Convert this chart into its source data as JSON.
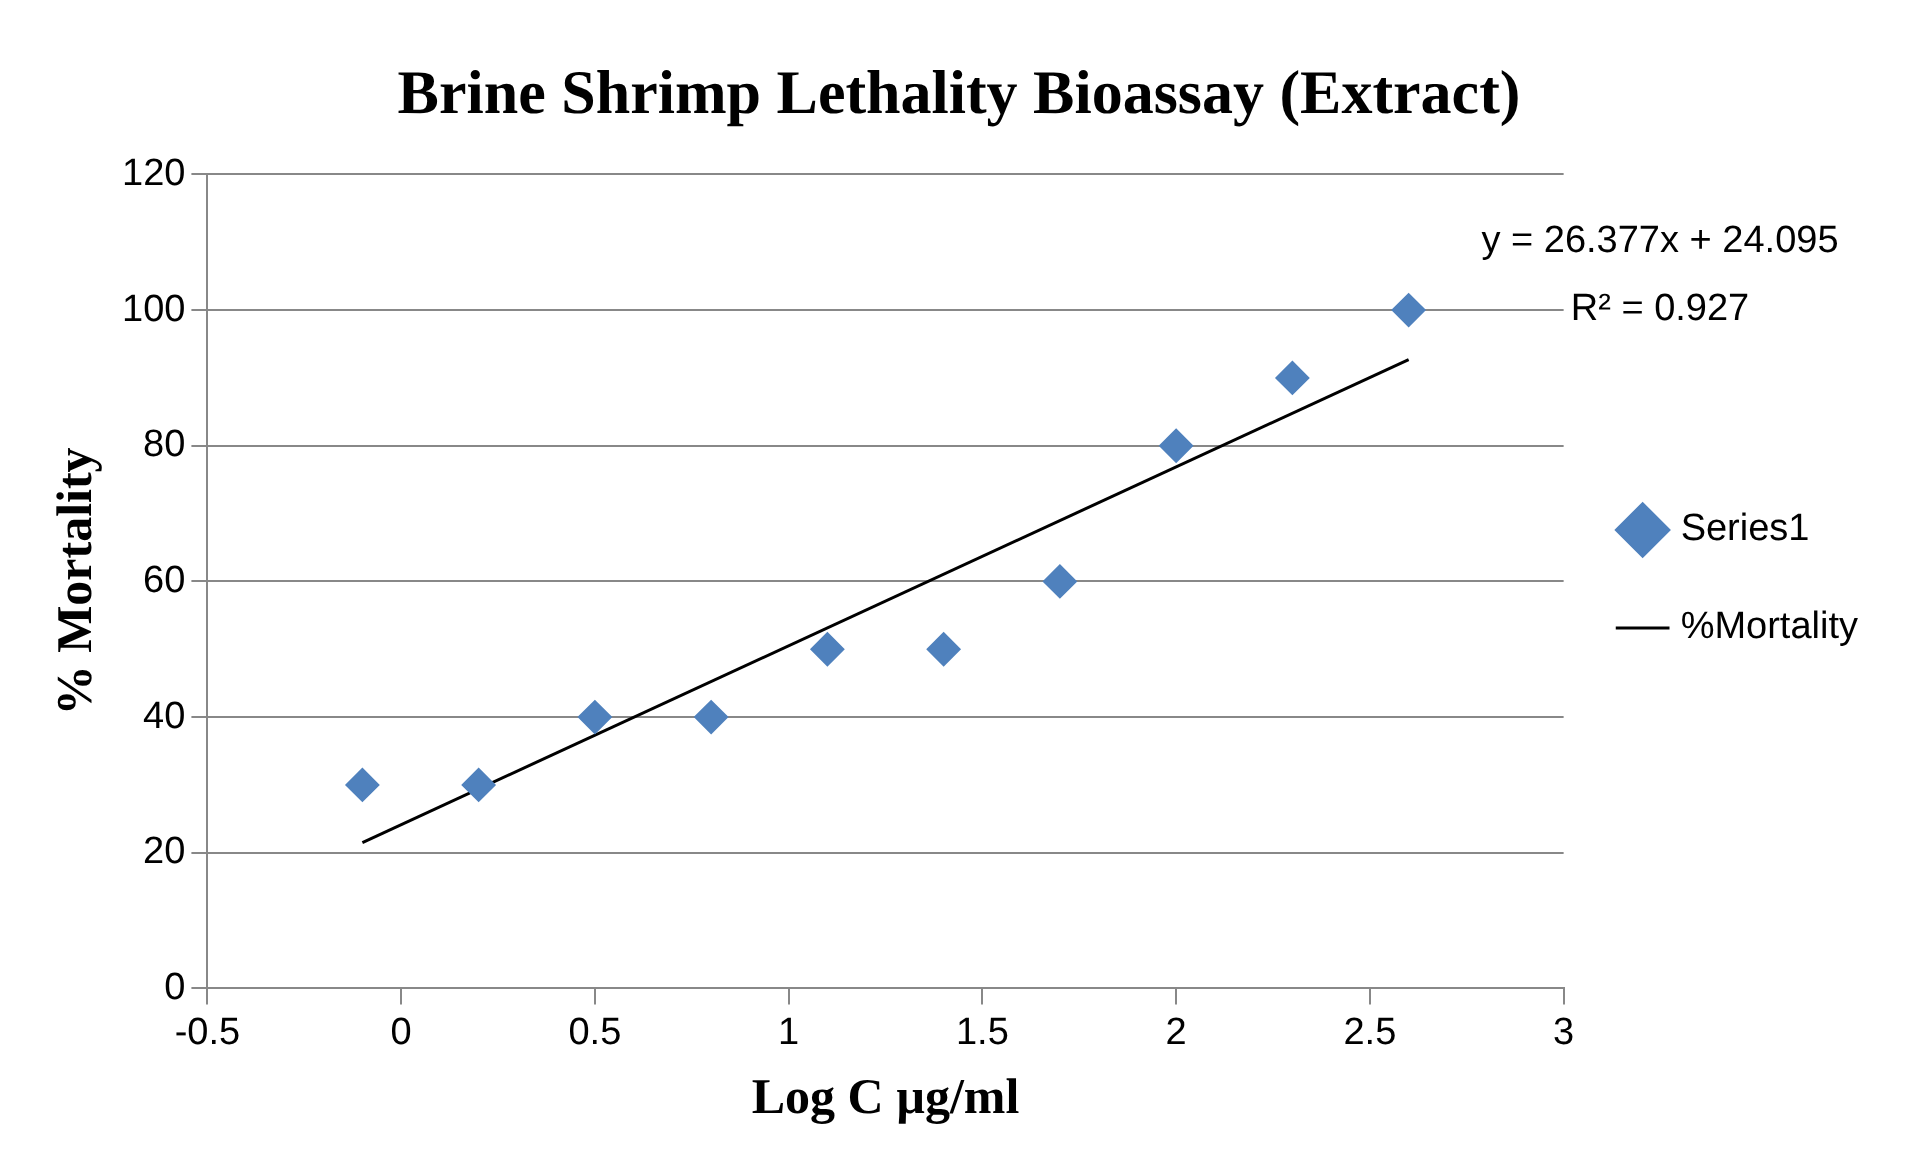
{
  "chart_data": {
    "type": "scatter",
    "title": "Brine Shrimp Lethality Bioassay (Extract)",
    "xlabel": "Log C µg/ml",
    "ylabel": "% Mortality",
    "series": [
      {
        "name": "Series1",
        "type": "scatter",
        "color": "#4f81bd",
        "marker": "diamond",
        "x": [
          -0.1,
          0.2,
          0.5,
          0.8,
          1.1,
          1.4,
          1.7,
          2.0,
          2.3,
          2.6
        ],
        "values": [
          30,
          30,
          40,
          40,
          50,
          50,
          60,
          80,
          90,
          100
        ]
      },
      {
        "name": "%Mortality",
        "type": "line",
        "color": "#000000",
        "marker": "none",
        "line_style": "solid",
        "x": [
          -0.1,
          2.6
        ],
        "values": [
          21.5,
          92.7
        ]
      }
    ],
    "xlim": [
      -0.5,
      3
    ],
    "xticks": [
      -0.5,
      0,
      0.5,
      1,
      1.5,
      2,
      2.5,
      3
    ],
    "ylim": [
      0,
      120
    ],
    "yticks": [
      0,
      20,
      40,
      60,
      80,
      100,
      120
    ],
    "grid": "y",
    "legend": "right",
    "annotations": [
      "y = 26.377x + 24.095",
      "R² = 0.927"
    ]
  }
}
